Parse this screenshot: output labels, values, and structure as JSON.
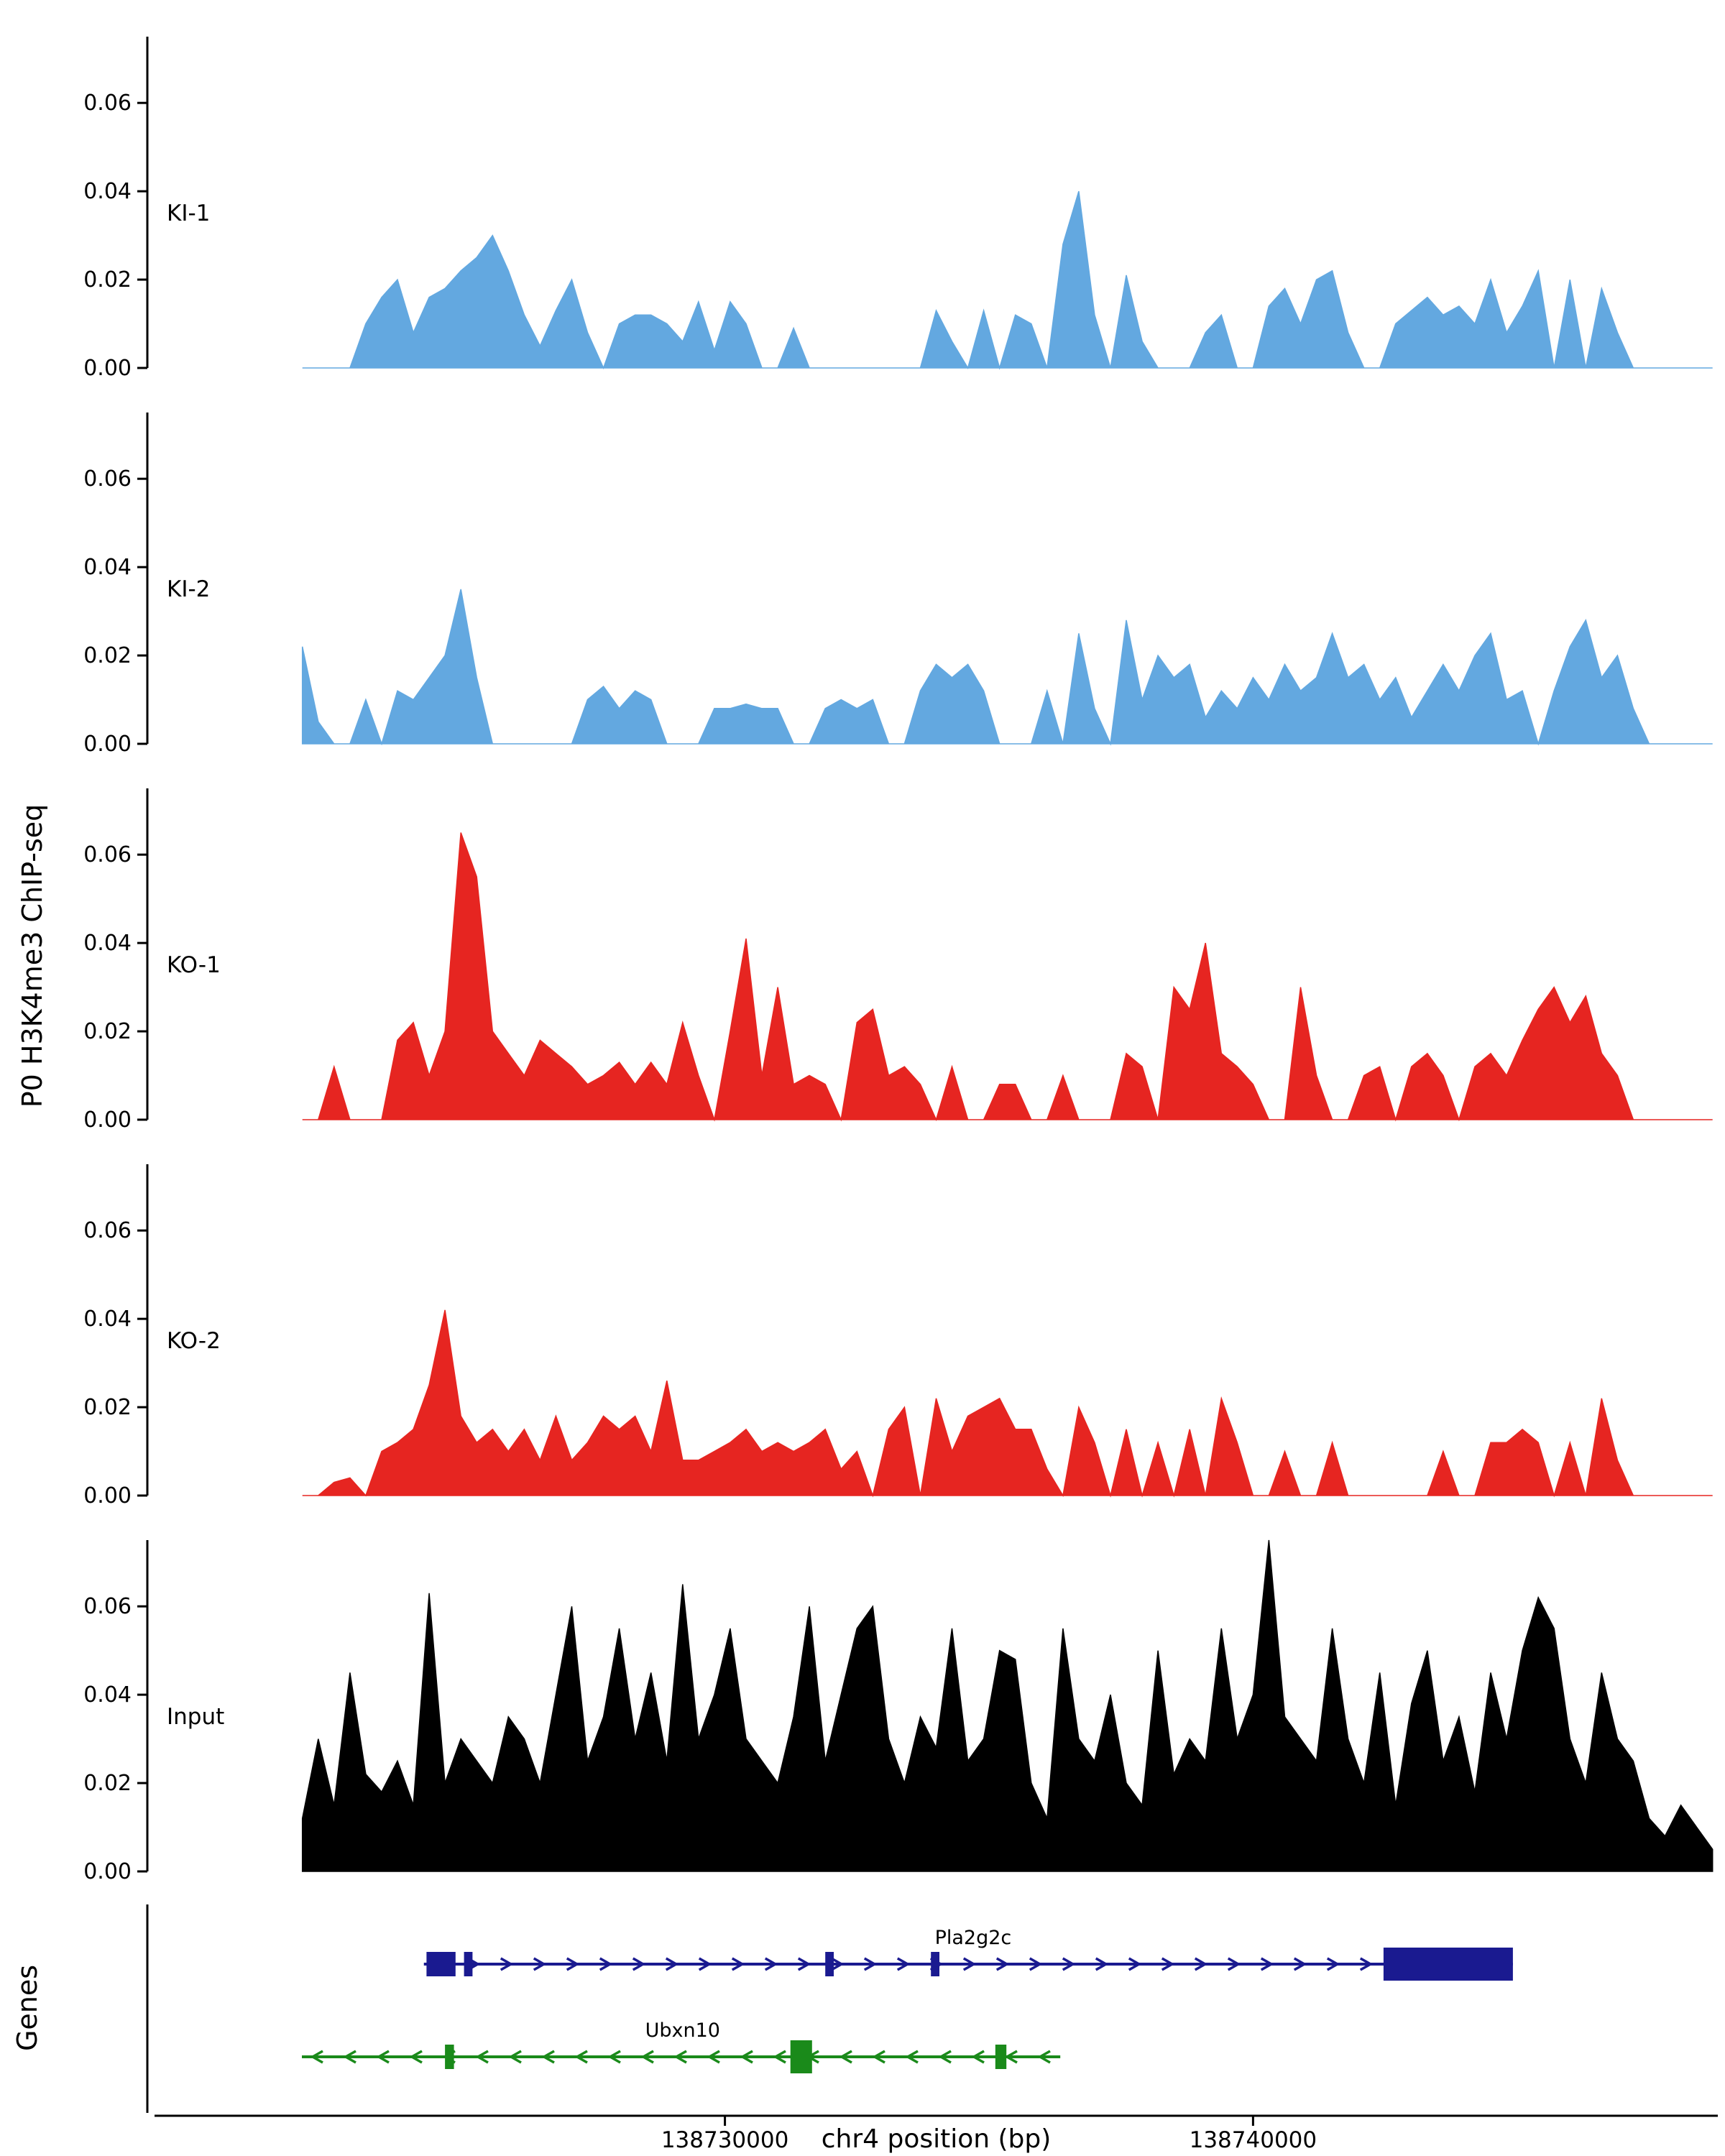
{
  "figure": {
    "background": "#ffffff"
  },
  "chart_data": {
    "type": "area",
    "title": "",
    "ylabel": "P0 H3K4me3 ChIP-seq",
    "xlabel": "chr4 position (bp)",
    "genes_axis_label": "Genes",
    "x_axis": {
      "domain": [
        138719200,
        138748800
      ],
      "ticks": [
        138730000,
        138740000
      ],
      "tick_labels": [
        "138730000",
        "138740000"
      ]
    },
    "y_axis": {
      "max": 0.075,
      "ticks": [
        0,
        0.02,
        0.04,
        0.06
      ],
      "tick_labels": [
        "0.00",
        "0.02",
        "0.04",
        "0.06"
      ]
    },
    "series_x": {
      "start": 138722000,
      "step": 300,
      "n": 90
    },
    "series": [
      {
        "name": "KI-1",
        "color": "#63a8e0",
        "values": [
          0,
          0,
          0,
          0,
          0.01,
          0.016,
          0.02,
          0.008,
          0.016,
          0.018,
          0.022,
          0.025,
          0.03,
          0.022,
          0.012,
          0.005,
          0.013,
          0.02,
          0.008,
          0,
          0.01,
          0.012,
          0.012,
          0.01,
          0.006,
          0.015,
          0.004,
          0.015,
          0.01,
          0,
          0,
          0.009,
          0,
          0,
          0,
          0,
          0,
          0,
          0,
          0,
          0.013,
          0.006,
          0,
          0.013,
          0,
          0.012,
          0.01,
          0,
          0.028,
          0.04,
          0.012,
          0,
          0.021,
          0.006,
          0,
          0,
          0,
          0.008,
          0.012,
          0,
          0,
          0.014,
          0.018,
          0.01,
          0.02,
          0.022,
          0.008,
          0,
          0,
          0.01,
          0.013,
          0.016,
          0.012,
          0.014,
          0.01,
          0.02,
          0.008,
          0.014,
          0.022,
          0,
          0.02,
          0,
          0.018,
          0.008,
          0,
          0,
          0,
          0,
          0,
          0
        ]
      },
      {
        "name": "KI-2",
        "color": "#63a8e0",
        "values": [
          0.022,
          0.005,
          0,
          0,
          0.01,
          0,
          0.012,
          0.01,
          0.015,
          0.02,
          0.035,
          0.015,
          0,
          0,
          0,
          0,
          0,
          0,
          0.01,
          0.013,
          0.008,
          0.012,
          0.01,
          0,
          0,
          0,
          0.008,
          0.008,
          0.009,
          0.008,
          0.008,
          0,
          0,
          0.008,
          0.01,
          0.008,
          0.01,
          0,
          0,
          0.012,
          0.018,
          0.015,
          0.018,
          0.012,
          0,
          0,
          0,
          0.012,
          0,
          0.025,
          0.008,
          0,
          0.028,
          0.01,
          0.02,
          0.015,
          0.018,
          0.006,
          0.012,
          0.008,
          0.015,
          0.01,
          0.018,
          0.012,
          0.015,
          0.025,
          0.015,
          0.018,
          0.01,
          0.015,
          0.006,
          0.012,
          0.018,
          0.012,
          0.02,
          0.025,
          0.01,
          0.012,
          0,
          0.012,
          0.022,
          0.028,
          0.015,
          0.02,
          0.008,
          0,
          0,
          0,
          0,
          0
        ]
      },
      {
        "name": "KO-1",
        "color": "#e62521",
        "values": [
          0,
          0,
          0.012,
          0,
          0,
          0,
          0.018,
          0.022,
          0.01,
          0.02,
          0.065,
          0.055,
          0.02,
          0.015,
          0.01,
          0.018,
          0.015,
          0.012,
          0.008,
          0.01,
          0.013,
          0.008,
          0.013,
          0.008,
          0.022,
          0.01,
          0,
          0.02,
          0.041,
          0.01,
          0.03,
          0.008,
          0.01,
          0.008,
          0,
          0.022,
          0.025,
          0.01,
          0.012,
          0.008,
          0,
          0.012,
          0,
          0,
          0.008,
          0.008,
          0,
          0,
          0.01,
          0,
          0,
          0,
          0.015,
          0.012,
          0,
          0.03,
          0.025,
          0.04,
          0.015,
          0.012,
          0.008,
          0,
          0,
          0.03,
          0.01,
          0,
          0,
          0.01,
          0.012,
          0,
          0.012,
          0.015,
          0.01,
          0,
          0.012,
          0.015,
          0.01,
          0.018,
          0.025,
          0.03,
          0.022,
          0.028,
          0.015,
          0.01,
          0,
          0,
          0,
          0,
          0,
          0
        ]
      },
      {
        "name": "KO-2",
        "color": "#e62521",
        "values": [
          0,
          0,
          0.003,
          0.004,
          0,
          0.01,
          0.012,
          0.015,
          0.025,
          0.042,
          0.018,
          0.012,
          0.015,
          0.01,
          0.015,
          0.008,
          0.018,
          0.008,
          0.012,
          0.018,
          0.015,
          0.018,
          0.01,
          0.026,
          0.008,
          0.008,
          0.01,
          0.012,
          0.015,
          0.01,
          0.012,
          0.01,
          0.012,
          0.015,
          0.006,
          0.01,
          0,
          0.015,
          0.02,
          0,
          0.022,
          0.01,
          0.018,
          0.02,
          0.022,
          0.015,
          0.015,
          0.006,
          0,
          0.02,
          0.012,
          0,
          0.015,
          0,
          0.012,
          0,
          0.015,
          0,
          0.022,
          0.012,
          0,
          0,
          0.01,
          0,
          0,
          0.012,
          0,
          0,
          0,
          0,
          0,
          0,
          0.01,
          0,
          0,
          0.012,
          0.012,
          0.015,
          0.012,
          0,
          0.012,
          0,
          0.022,
          0.008,
          0,
          0,
          0,
          0,
          0,
          0
        ]
      },
      {
        "name": "Input",
        "color": "#000000",
        "values": [
          0.012,
          0.03,
          0.015,
          0.045,
          0.022,
          0.018,
          0.025,
          0.015,
          0.063,
          0.02,
          0.03,
          0.025,
          0.02,
          0.035,
          0.03,
          0.02,
          0.04,
          0.06,
          0.025,
          0.035,
          0.055,
          0.03,
          0.045,
          0.025,
          0.065,
          0.03,
          0.04,
          0.055,
          0.03,
          0.025,
          0.02,
          0.035,
          0.06,
          0.025,
          0.04,
          0.055,
          0.06,
          0.03,
          0.02,
          0.035,
          0.028,
          0.055,
          0.025,
          0.03,
          0.05,
          0.048,
          0.02,
          0.012,
          0.055,
          0.03,
          0.025,
          0.04,
          0.02,
          0.015,
          0.05,
          0.022,
          0.03,
          0.025,
          0.055,
          0.03,
          0.04,
          0.075,
          0.035,
          0.03,
          0.025,
          0.055,
          0.03,
          0.02,
          0.045,
          0.015,
          0.038,
          0.05,
          0.025,
          0.035,
          0.018,
          0.045,
          0.03,
          0.05,
          0.062,
          0.055,
          0.03,
          0.02,
          0.045,
          0.03,
          0.025,
          0.012,
          0.008,
          0.015,
          0.01,
          0.005
        ]
      }
    ],
    "genes": [
      {
        "name": "Pla2g2c",
        "strand": "+",
        "color": "#1a1a90",
        "start": 138724300,
        "end": 138744920,
        "label_bp": 138734700,
        "exons": [
          [
            138724350,
            138724900,
            0
          ],
          [
            138725060,
            138725220,
            0
          ],
          [
            138731900,
            138732060,
            0
          ],
          [
            138733900,
            138734060,
            0
          ],
          [
            138742470,
            138744920,
            1
          ]
        ]
      },
      {
        "name": "Ubxn10",
        "strand": "-",
        "color": "#1a8a1a",
        "start": 138721990,
        "end": 138736350,
        "label_bp": 138729200,
        "exons": [
          [
            138724700,
            138724870,
            0
          ],
          [
            138731240,
            138731650,
            1
          ],
          [
            138735120,
            138735330,
            0
          ]
        ]
      }
    ]
  }
}
